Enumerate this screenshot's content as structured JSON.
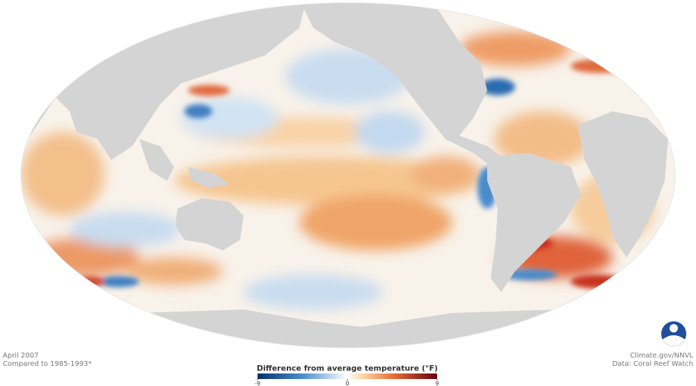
{
  "date": "April 2007",
  "baseline": "Compared to 1985-1993*",
  "credit": "Climate.gov/NNVL",
  "source": "Data: Coral Reef Watch",
  "legend": {
    "title": "Difference from average temperature (°F)",
    "lim": [
      -9,
      9
    ],
    "ticks": [
      -9,
      0,
      9
    ]
  }
}
